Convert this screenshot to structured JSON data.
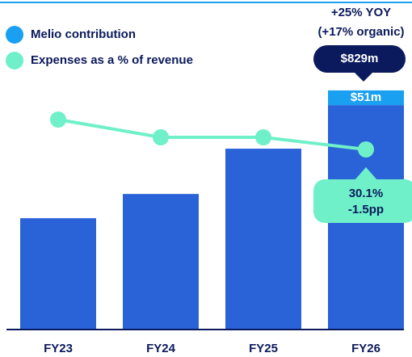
{
  "chart_data": {
    "type": "bar",
    "categories": [
      "FY23",
      "FY24",
      "FY25",
      "FY26"
    ],
    "ylim": [
      0,
      1120
    ],
    "y2lim": [
      7.8,
      47.8
    ],
    "series": [
      {
        "color": "#2a62d8",
        "values": [
          386,
          470,
          627,
          778
        ]
      },
      {
        "name": "Melio contribution",
        "color": "#1aa0f0",
        "values": [
          null,
          null,
          null,
          51
        ],
        "value_labels": [
          null,
          null,
          null,
          "$51m"
        ]
      },
      {
        "name": "Expenses as a % of revenue",
        "type": "line",
        "axis": "y2",
        "color": "#6ff0c8",
        "values": [
          33.8,
          31.6,
          31.6,
          30.1
        ],
        "value_labels": [
          null,
          null,
          null,
          "30.1%"
        ]
      }
    ],
    "annotations": {
      "growth": "+25% YOY",
      "organic": "(+17% organic)",
      "total": "$829m",
      "change": "-1.5pp"
    }
  }
}
